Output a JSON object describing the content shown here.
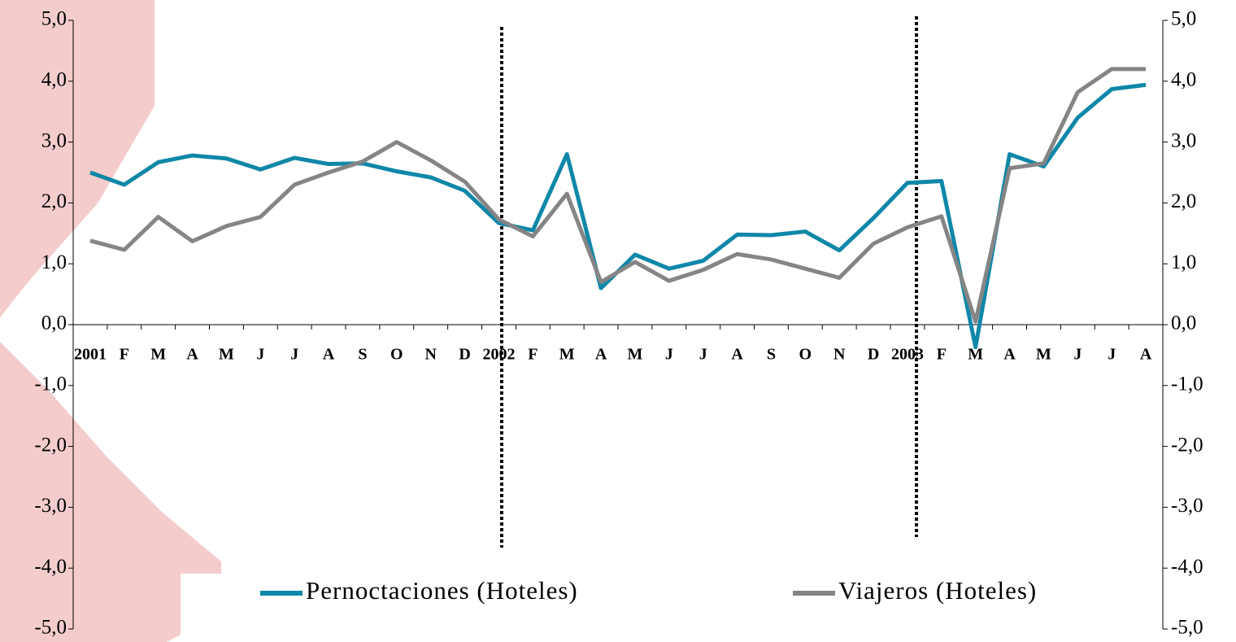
{
  "chart_data": {
    "type": "line",
    "categories": [
      "2001",
      "F",
      "M",
      "A",
      "M",
      "J",
      "J",
      "A",
      "S",
      "O",
      "N",
      "D",
      "2002",
      "F",
      "M",
      "A",
      "M",
      "J",
      "J",
      "A",
      "S",
      "O",
      "N",
      "D",
      "2003",
      "F",
      "M",
      "A",
      "M",
      "J",
      "J",
      "A"
    ],
    "series": [
      {
        "name": "Pernoctaciones (Hoteles)",
        "color": "#0f87a8",
        "values": [
          2.5,
          2.3,
          2.67,
          2.78,
          2.73,
          2.55,
          2.74,
          2.64,
          2.65,
          2.52,
          2.42,
          2.2,
          1.67,
          1.55,
          2.8,
          0.6,
          1.15,
          0.92,
          1.05,
          1.48,
          1.47,
          1.53,
          1.22,
          1.75,
          2.33,
          2.36,
          -0.37,
          2.8,
          2.6,
          3.4,
          3.87,
          3.94
        ]
      },
      {
        "name": "Viajeros (Hoteles)",
        "color": "#858585",
        "values": [
          1.38,
          1.23,
          1.77,
          1.37,
          1.62,
          1.77,
          2.3,
          2.5,
          2.68,
          3.0,
          2.7,
          2.35,
          1.73,
          1.45,
          2.15,
          0.7,
          1.03,
          0.72,
          0.9,
          1.16,
          1.07,
          0.92,
          0.77,
          1.33,
          1.6,
          1.78,
          0.05,
          2.57,
          2.65,
          3.82,
          4.2,
          4.2
        ]
      }
    ],
    "ylim": [
      -5,
      5
    ],
    "yticks": [
      {
        "value": 5,
        "label": "5,0"
      },
      {
        "value": 4,
        "label": "4,0"
      },
      {
        "value": 3,
        "label": "3,0"
      },
      {
        "value": 2,
        "label": "2,0"
      },
      {
        "value": 1,
        "label": "1,0"
      },
      {
        "value": 0,
        "label": "0,0"
      },
      {
        "value": -1,
        "label": "-1,0"
      },
      {
        "value": -2,
        "label": "-2,0"
      },
      {
        "value": -3,
        "label": "-3,0"
      },
      {
        "value": -4,
        "label": "-4,0"
      },
      {
        "value": -5,
        "label": "-5,0"
      }
    ],
    "y2lim": [
      -5,
      5
    ],
    "y2ticks": [
      {
        "value": 5,
        "label": "5,0"
      },
      {
        "value": 4,
        "label": "4,0"
      },
      {
        "value": 3,
        "label": "3,0"
      },
      {
        "value": 2,
        "label": "2,0"
      },
      {
        "value": 1,
        "label": "1,0"
      },
      {
        "value": 0,
        "label": "0,0"
      },
      {
        "value": -1,
        "label": "-1,0"
      },
      {
        "value": -2,
        "label": "-2,0"
      },
      {
        "value": -3,
        "label": "-3,0"
      },
      {
        "value": -4,
        "label": "-4,0"
      },
      {
        "value": -5,
        "label": "-5,0"
      }
    ],
    "grid": false
  }
}
